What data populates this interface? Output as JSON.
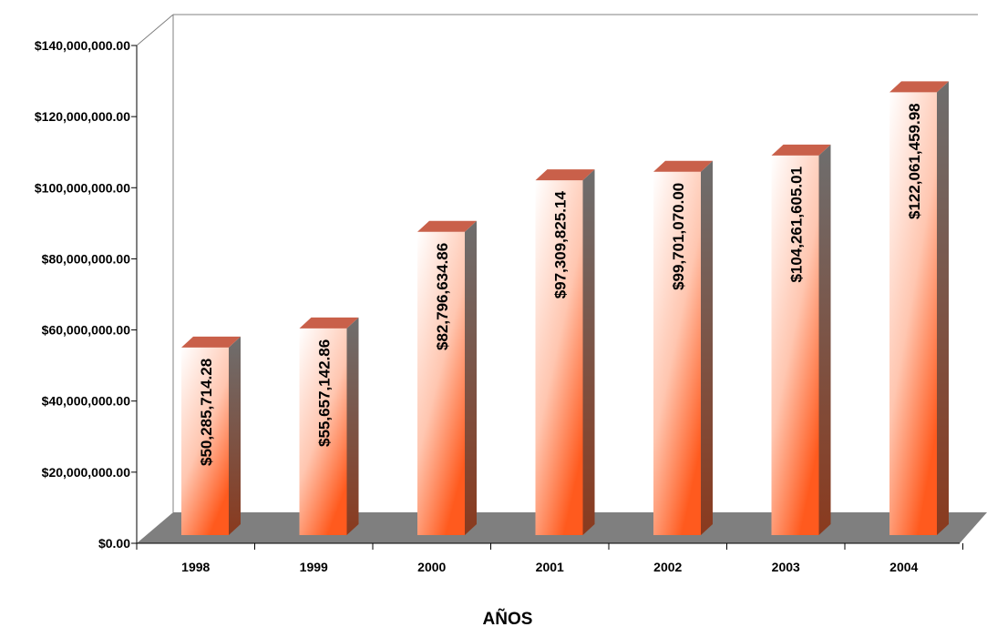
{
  "chart_data": {
    "type": "bar",
    "title": "",
    "xlabel": "AÑOS",
    "ylabel": "",
    "categories": [
      "1998",
      "1999",
      "2000",
      "2001",
      "2002",
      "2003",
      "2004"
    ],
    "values": [
      50285714.28,
      55657142.86,
      82796634.86,
      97309825.14,
      99701070.0,
      104261605.01,
      122061459.98
    ],
    "data_labels": [
      "$50,285,714.28",
      "$55,657,142.86",
      "$82,796,634.86",
      "$97,309,825.14",
      "$99,701,070.00",
      "$104,261,605.01",
      "$122,061,459.98"
    ],
    "y_ticks": [
      "$0.00",
      "$20,000,000.00",
      "$40,000,000.00",
      "$60,000,000.00",
      "$80,000,000.00",
      "$100,000,000.00",
      "$120,000,000.00",
      "$140,000,000.00"
    ],
    "ylim": [
      0,
      140000000
    ],
    "grid": false,
    "legend": "none",
    "style": "3d-column",
    "colors": {
      "bar_top": "#ffffff",
      "bar_bottom": "#ff5a1e",
      "bar_side": "#7a3a26",
      "bar_cap": "#c9604a",
      "floor": "#7f7f7f",
      "wall_line": "#808080"
    }
  }
}
